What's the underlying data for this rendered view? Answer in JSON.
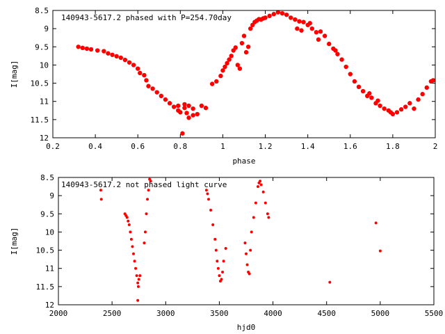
{
  "chart_data": [
    {
      "type": "scatter",
      "title": "140943-5617.2 phased with P=254.70day",
      "xlabel": "phase",
      "ylabel": "I[mag]",
      "xlim": [
        0.2,
        2.0
      ],
      "ylim": [
        12,
        8.5
      ],
      "y_inverted": true,
      "grid": false,
      "marker_color": "#ff0000",
      "marker": "filled-circle-large",
      "xticks": [
        "0.2",
        "0.4",
        "0.6",
        "0.8",
        "1",
        "1.2",
        "1.4",
        "1.6",
        "1.8",
        "2"
      ],
      "yticks": [
        "8.5",
        "9",
        "9.5",
        "10",
        "10.5",
        "11",
        "11.5",
        "12"
      ],
      "points": [
        [
          0.32,
          9.5
        ],
        [
          0.34,
          9.53
        ],
        [
          0.36,
          9.55
        ],
        [
          0.38,
          9.57
        ],
        [
          0.41,
          9.6
        ],
        [
          0.44,
          9.62
        ],
        [
          0.46,
          9.68
        ],
        [
          0.48,
          9.72
        ],
        [
          0.5,
          9.76
        ],
        [
          0.52,
          9.8
        ],
        [
          0.54,
          9.86
        ],
        [
          0.56,
          9.93
        ],
        [
          0.58,
          10.0
        ],
        [
          0.6,
          10.1
        ],
        [
          0.61,
          10.22
        ],
        [
          0.63,
          10.28
        ],
        [
          0.64,
          10.42
        ],
        [
          0.65,
          10.58
        ],
        [
          0.67,
          10.65
        ],
        [
          0.69,
          10.75
        ],
        [
          0.71,
          10.85
        ],
        [
          0.73,
          10.95
        ],
        [
          0.75,
          11.05
        ],
        [
          0.77,
          11.15
        ],
        [
          0.79,
          11.25
        ],
        [
          0.8,
          11.3
        ],
        [
          0.82,
          11.18
        ],
        [
          0.83,
          11.32
        ],
        [
          0.84,
          11.45
        ],
        [
          0.86,
          11.38
        ],
        [
          0.81,
          11.88
        ],
        [
          0.79,
          11.12
        ],
        [
          0.82,
          11.08
        ],
        [
          0.84,
          11.12
        ],
        [
          0.86,
          11.2
        ],
        [
          0.88,
          11.35
        ],
        [
          0.9,
          11.12
        ],
        [
          0.92,
          11.18
        ],
        [
          0.95,
          10.52
        ],
        [
          0.97,
          10.45
        ],
        [
          0.99,
          10.3
        ],
        [
          1.0,
          10.15
        ],
        [
          1.01,
          10.05
        ],
        [
          1.02,
          9.95
        ],
        [
          1.03,
          9.85
        ],
        [
          1.04,
          9.75
        ],
        [
          1.05,
          9.6
        ],
        [
          1.06,
          9.52
        ],
        [
          1.07,
          10.0
        ],
        [
          1.08,
          10.1
        ],
        [
          1.09,
          9.4
        ],
        [
          1.1,
          9.2
        ],
        [
          1.11,
          9.65
        ],
        [
          1.12,
          9.5
        ],
        [
          1.13,
          9.0
        ],
        [
          1.14,
          8.9
        ],
        [
          1.15,
          8.82
        ],
        [
          1.16,
          8.78
        ],
        [
          1.17,
          8.74
        ],
        [
          1.18,
          8.75
        ],
        [
          1.19,
          8.72
        ],
        [
          1.2,
          8.7
        ],
        [
          1.22,
          8.65
        ],
        [
          1.24,
          8.6
        ],
        [
          1.26,
          8.55
        ],
        [
          1.28,
          8.58
        ],
        [
          1.3,
          8.62
        ],
        [
          1.32,
          8.7
        ],
        [
          1.34,
          8.75
        ],
        [
          1.36,
          8.8
        ],
        [
          1.38,
          8.82
        ],
        [
          1.4,
          8.9
        ],
        [
          1.42,
          9.0
        ],
        [
          1.44,
          9.1
        ],
        [
          1.46,
          9.08
        ],
        [
          1.48,
          9.2
        ],
        [
          1.5,
          9.42
        ],
        [
          1.52,
          9.55
        ],
        [
          1.54,
          9.7
        ],
        [
          1.56,
          9.85
        ],
        [
          1.58,
          10.05
        ],
        [
          1.6,
          10.25
        ],
        [
          1.62,
          10.45
        ],
        [
          1.64,
          10.6
        ],
        [
          1.66,
          10.72
        ],
        [
          1.68,
          10.85
        ],
        [
          1.7,
          10.9
        ],
        [
          1.72,
          11.05
        ],
        [
          1.74,
          11.12
        ],
        [
          1.76,
          11.2
        ],
        [
          1.78,
          11.25
        ],
        [
          1.8,
          11.35
        ],
        [
          1.82,
          11.3
        ],
        [
          1.84,
          11.22
        ],
        [
          1.86,
          11.15
        ],
        [
          1.88,
          11.05
        ],
        [
          1.9,
          11.2
        ],
        [
          1.92,
          10.95
        ],
        [
          1.94,
          10.8
        ],
        [
          1.96,
          10.62
        ],
        [
          1.98,
          10.45
        ],
        [
          1.99,
          10.42
        ],
        [
          1.35,
          9.0
        ],
        [
          1.37,
          9.05
        ],
        [
          1.41,
          8.85
        ],
        [
          1.45,
          9.3
        ],
        [
          1.53,
          9.6
        ],
        [
          1.69,
          10.78
        ],
        [
          1.73,
          10.98
        ],
        [
          1.79,
          11.3
        ]
      ]
    },
    {
      "type": "scatter",
      "title": "140943-5617.2 not phased light curve",
      "xlabel": "hjd0",
      "ylabel": "I[mag]",
      "xlim": [
        2000,
        5500
      ],
      "ylim": [
        12,
        8.5
      ],
      "y_inverted": true,
      "grid": false,
      "marker_color": "#ff0000",
      "marker": "filled-circle-small",
      "xticks": [
        "2000",
        "2500",
        "3000",
        "3500",
        "4000",
        "4500",
        "5000",
        "5500"
      ],
      "yticks": [
        "8.5",
        "9",
        "9.5",
        "10",
        "10.5",
        "11",
        "11.5",
        "12"
      ],
      "points": [
        [
          2395,
          8.85
        ],
        [
          2400,
          9.1
        ],
        [
          2620,
          9.5
        ],
        [
          2630,
          9.55
        ],
        [
          2640,
          9.6
        ],
        [
          2650,
          9.7
        ],
        [
          2660,
          9.8
        ],
        [
          2670,
          10.0
        ],
        [
          2680,
          10.2
        ],
        [
          2690,
          10.4
        ],
        [
          2700,
          10.6
        ],
        [
          2710,
          10.8
        ],
        [
          2720,
          11.0
        ],
        [
          2730,
          11.2
        ],
        [
          2740,
          11.4
        ],
        [
          2745,
          11.5
        ],
        [
          2750,
          11.3
        ],
        [
          2760,
          11.2
        ],
        [
          2740,
          11.88
        ],
        [
          2800,
          10.3
        ],
        [
          2810,
          10.0
        ],
        [
          2820,
          9.5
        ],
        [
          2830,
          9.1
        ],
        [
          2840,
          8.85
        ],
        [
          2850,
          8.55
        ],
        [
          2860,
          8.6
        ],
        [
          3380,
          8.85
        ],
        [
          3390,
          8.95
        ],
        [
          3400,
          9.1
        ],
        [
          3420,
          9.4
        ],
        [
          3440,
          9.8
        ],
        [
          3460,
          10.2
        ],
        [
          3470,
          10.5
        ],
        [
          3480,
          10.8
        ],
        [
          3490,
          11.0
        ],
        [
          3500,
          11.2
        ],
        [
          3510,
          11.35
        ],
        [
          3520,
          11.3
        ],
        [
          3530,
          11.1
        ],
        [
          3540,
          10.8
        ],
        [
          3560,
          10.45
        ],
        [
          3740,
          10.3
        ],
        [
          3750,
          10.6
        ],
        [
          3760,
          10.9
        ],
        [
          3770,
          11.1
        ],
        [
          3780,
          11.15
        ],
        [
          3790,
          10.5
        ],
        [
          3800,
          10.0
        ],
        [
          3820,
          9.6
        ],
        [
          3840,
          9.2
        ],
        [
          3860,
          8.75
        ],
        [
          3870,
          8.65
        ],
        [
          3880,
          8.6
        ],
        [
          3890,
          8.7
        ],
        [
          3910,
          8.9
        ],
        [
          3930,
          9.2
        ],
        [
          3950,
          9.5
        ],
        [
          3960,
          9.6
        ],
        [
          4530,
          11.38
        ],
        [
          4960,
          9.75
        ],
        [
          5000,
          10.52
        ]
      ]
    }
  ]
}
